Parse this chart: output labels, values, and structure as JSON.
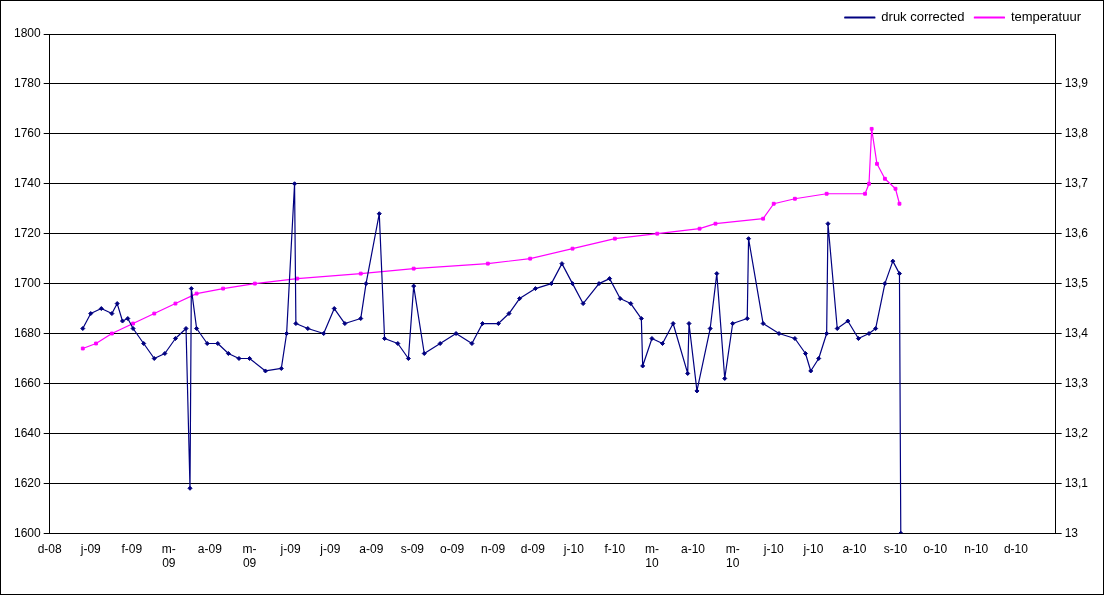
{
  "chart_data": {
    "type": "line",
    "legend": "top right",
    "grid": "y",
    "line_style": "solid",
    "xlim": [
      "2008-12-01",
      "2010-12-31"
    ],
    "xticks": [
      {
        "value": "2008-12-01",
        "label": "d-08"
      },
      {
        "value": "2009-01-01",
        "label": "j-09"
      },
      {
        "value": "2009-02-01",
        "label": "f-09"
      },
      {
        "value": "2009-03-01",
        "label": "m-09"
      },
      {
        "value": "2009-04-01",
        "label": "a-09"
      },
      {
        "value": "2009-05-01",
        "label": "m-09"
      },
      {
        "value": "2009-06-01",
        "label": "j-09"
      },
      {
        "value": "2009-07-01",
        "label": "j-09"
      },
      {
        "value": "2009-08-01",
        "label": "a-09"
      },
      {
        "value": "2009-09-01",
        "label": "s-09"
      },
      {
        "value": "2009-10-01",
        "label": "o-09"
      },
      {
        "value": "2009-11-01",
        "label": "n-09"
      },
      {
        "value": "2009-12-01",
        "label": "d-09"
      },
      {
        "value": "2010-01-01",
        "label": "j-10"
      },
      {
        "value": "2010-02-01",
        "label": "f-10"
      },
      {
        "value": "2010-03-01",
        "label": "m-10"
      },
      {
        "value": "2010-04-01",
        "label": "a-10"
      },
      {
        "value": "2010-05-01",
        "label": "m-10"
      },
      {
        "value": "2010-06-01",
        "label": "j-10"
      },
      {
        "value": "2010-07-01",
        "label": "j-10"
      },
      {
        "value": "2010-08-01",
        "label": "a-10"
      },
      {
        "value": "2010-09-01",
        "label": "s-10"
      },
      {
        "value": "2010-10-01",
        "label": "o-10"
      },
      {
        "value": "2010-11-01",
        "label": "n-10"
      },
      {
        "value": "2010-12-01",
        "label": "d-10"
      }
    ],
    "ylim": [
      1600,
      1800
    ],
    "yticks": [
      1600,
      1620,
      1640,
      1660,
      1680,
      1700,
      1720,
      1740,
      1760,
      1780,
      1800
    ],
    "y2lim": [
      13,
      14
    ],
    "y2ticks": [
      13,
      {
        "value": 13.1,
        "label": "13,1"
      },
      {
        "value": 13.2,
        "label": "13,2"
      },
      {
        "value": 13.3,
        "label": "13,3"
      },
      {
        "value": 13.4,
        "label": "13,4"
      },
      {
        "value": 13.5,
        "label": "13,5"
      },
      {
        "value": 13.6,
        "label": "13,6"
      },
      {
        "value": 13.7,
        "label": "13,7"
      },
      {
        "value": 13.8,
        "label": "13,8"
      },
      {
        "value": 13.9,
        "label": "13,9"
      }
    ],
    "series": [
      {
        "name": "druk corrected",
        "color": "#000080",
        "marker": "diamond",
        "x": [
          "2008-12-26",
          "2009-01-01",
          "2009-01-09",
          "2009-01-17",
          "2009-01-21",
          "2009-01-25",
          "2009-01-29",
          "2009-02-02",
          "2009-02-10",
          "2009-02-18",
          "2009-02-26",
          "2009-03-06",
          "2009-03-14",
          "2009-03-17",
          "2009-03-18",
          "2009-03-22",
          "2009-03-30",
          "2009-04-07",
          "2009-04-15",
          "2009-04-23",
          "2009-05-01",
          "2009-05-13",
          "2009-05-25",
          "2009-05-29",
          "2009-06-04",
          "2009-06-05",
          "2009-06-14",
          "2009-06-26",
          "2009-07-04",
          "2009-07-12",
          "2009-07-24",
          "2009-07-28",
          "2009-08-07",
          "2009-08-11",
          "2009-08-21",
          "2009-08-29",
          "2009-09-02",
          "2009-09-10",
          "2009-09-22",
          "2009-10-04",
          "2009-10-16",
          "2009-10-24",
          "2009-11-05",
          "2009-11-13",
          "2009-11-21",
          "2009-12-03",
          "2009-12-15",
          "2009-12-23",
          "2009-12-31",
          "2010-01-08",
          "2010-01-20",
          "2010-01-28",
          "2010-02-05",
          "2010-02-13",
          "2010-02-21",
          "2010-02-22",
          "2010-03-01",
          "2010-03-09",
          "2010-03-17",
          "2010-03-28",
          "2010-03-29",
          "2010-04-04",
          "2010-04-14",
          "2010-04-19",
          "2010-04-25",
          "2010-05-01",
          "2010-05-12",
          "2010-05-13",
          "2010-05-24",
          "2010-06-05",
          "2010-06-17",
          "2010-06-25",
          "2010-06-29",
          "2010-07-05",
          "2010-07-11",
          "2010-07-12",
          "2010-07-19",
          "2010-07-27",
          "2010-08-04",
          "2010-08-12",
          "2010-08-17",
          "2010-08-24",
          "2010-08-30",
          "2010-09-04",
          "2010-09-05"
        ],
        "values": [
          1682,
          1688,
          1690,
          1688,
          1692,
          1685,
          1686,
          1682,
          1676,
          1670,
          1672,
          1678,
          1682,
          1618,
          1698,
          1682,
          1676,
          1676,
          1672,
          1670,
          1670,
          1665,
          1666,
          1680,
          1740,
          1684,
          1682,
          1680,
          1690,
          1684,
          1686,
          1700,
          1728,
          1678,
          1676,
          1670,
          1699,
          1672,
          1676,
          1680,
          1676,
          1684,
          1684,
          1688,
          1694,
          1698,
          1700,
          1708,
          1700,
          1692,
          1700,
          1702,
          1694,
          1692,
          1686,
          1667,
          1678,
          1676,
          1684,
          1664,
          1684,
          1657,
          1682,
          1704,
          1662,
          1684,
          1686,
          1718,
          1684,
          1680,
          1678,
          1672,
          1665,
          1670,
          1680,
          1724,
          1682,
          1685,
          1678,
          1680,
          1682,
          1700,
          1709,
          1704,
          1600
        ]
      },
      {
        "name": "temperatuur",
        "color": "#ff00ff",
        "marker": "square",
        "axis": "y2",
        "x": [
          "2008-12-26",
          "2009-01-05",
          "2009-01-17",
          "2009-02-02",
          "2009-02-18",
          "2009-03-06",
          "2009-03-22",
          "2009-04-11",
          "2009-05-05",
          "2009-06-06",
          "2009-07-24",
          "2009-09-02",
          "2009-10-28",
          "2009-11-29",
          "2009-12-31",
          "2010-02-01",
          "2010-03-05",
          "2010-04-06",
          "2010-04-18",
          "2010-05-24",
          "2010-06-01",
          "2010-06-17",
          "2010-07-11",
          "2010-08-09",
          "2010-08-12",
          "2010-08-14",
          "2010-08-18",
          "2010-08-24",
          "2010-09-01",
          "2010-09-04"
        ],
        "values": [
          13.37,
          13.38,
          13.4,
          13.42,
          13.44,
          13.46,
          13.48,
          13.49,
          13.5,
          13.51,
          13.52,
          13.53,
          13.54,
          13.55,
          13.57,
          13.59,
          13.6,
          13.61,
          13.62,
          13.63,
          13.66,
          13.67,
          13.68,
          13.68,
          13.7,
          13.81,
          13.74,
          13.71,
          13.69,
          13.66
        ]
      }
    ]
  }
}
